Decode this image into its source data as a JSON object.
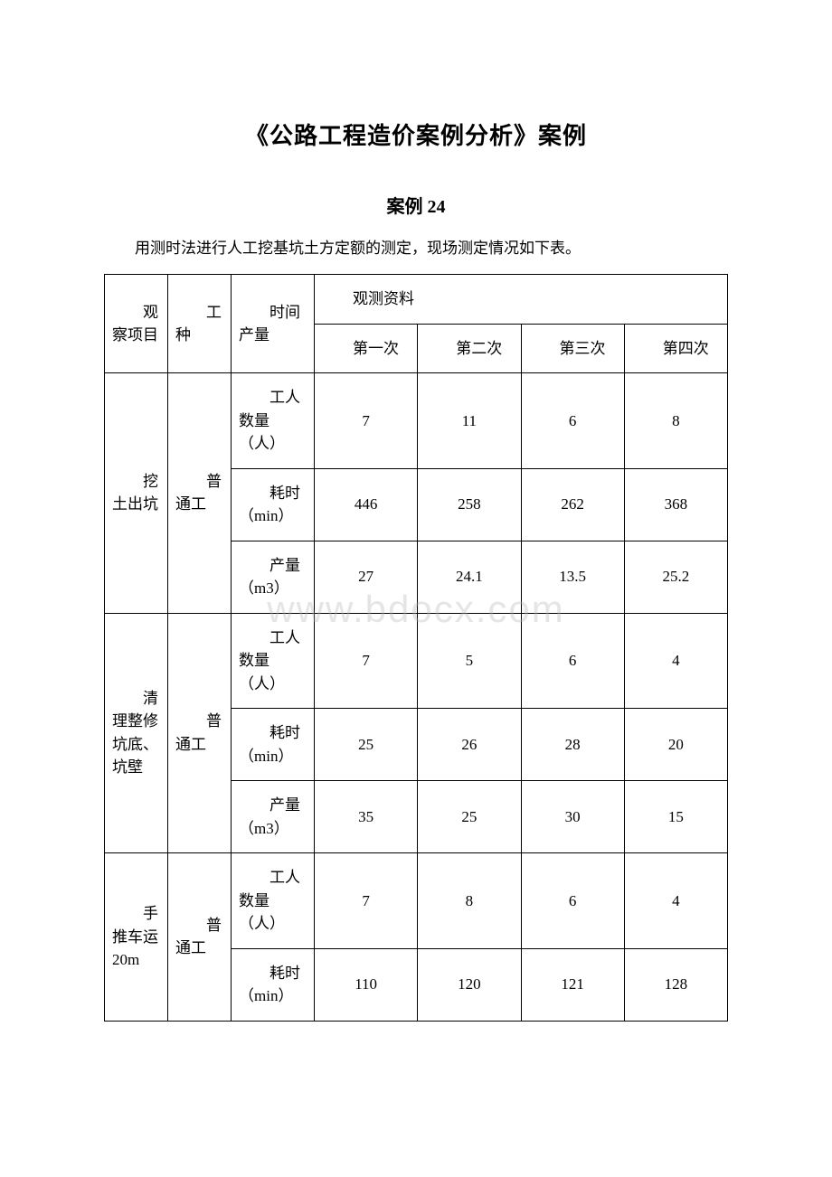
{
  "document": {
    "main_title": "《公路工程造价案例分析》案例",
    "sub_title": "案例 24",
    "intro": "用测时法进行人工挖基坑土方定额的测定，现场测定情况如下表。",
    "watermark": "www.bdocx.com"
  },
  "table": {
    "headers": {
      "col1": "观察项目",
      "col2": "工种",
      "col3": "时间产量",
      "obs_group": "观测资料",
      "obs1": "第一次",
      "obs2": "第二次",
      "obs3": "第三次",
      "obs4": "第四次"
    },
    "metrics": {
      "workers": "工人数量（人）",
      "time": "耗时（min）",
      "output": "产量（m3）"
    },
    "work_type": "普通工",
    "groups": [
      {
        "project": "挖土出坑",
        "rows": [
          {
            "metric": "workers",
            "v1": "7",
            "v2": "11",
            "v3": "6",
            "v4": "8"
          },
          {
            "metric": "time",
            "v1": "446",
            "v2": "258",
            "v3": "262",
            "v4": "368"
          },
          {
            "metric": "output",
            "v1": "27",
            "v2": "24.1",
            "v3": "13.5",
            "v4": "25.2"
          }
        ]
      },
      {
        "project": "清理整修坑底、坑壁",
        "rows": [
          {
            "metric": "workers",
            "v1": "7",
            "v2": "5",
            "v3": "6",
            "v4": "4"
          },
          {
            "metric": "time",
            "v1": "25",
            "v2": "26",
            "v3": "28",
            "v4": "20"
          },
          {
            "metric": "output",
            "v1": "35",
            "v2": "25",
            "v3": "30",
            "v4": "15"
          }
        ]
      },
      {
        "project": "手推车运20m",
        "rows": [
          {
            "metric": "workers",
            "v1": "7",
            "v2": "8",
            "v3": "6",
            "v4": "4"
          },
          {
            "metric": "time",
            "v1": "110",
            "v2": "120",
            "v3": "121",
            "v4": "128"
          }
        ]
      }
    ]
  },
  "styling": {
    "background_color": "#ffffff",
    "border_color": "#000000",
    "text_color": "#000000",
    "watermark_color": "rgba(180,180,180,0.35)",
    "title_fontsize": 26,
    "subtitle_fontsize": 20,
    "body_fontsize": 17,
    "font_family": "SimSun"
  }
}
